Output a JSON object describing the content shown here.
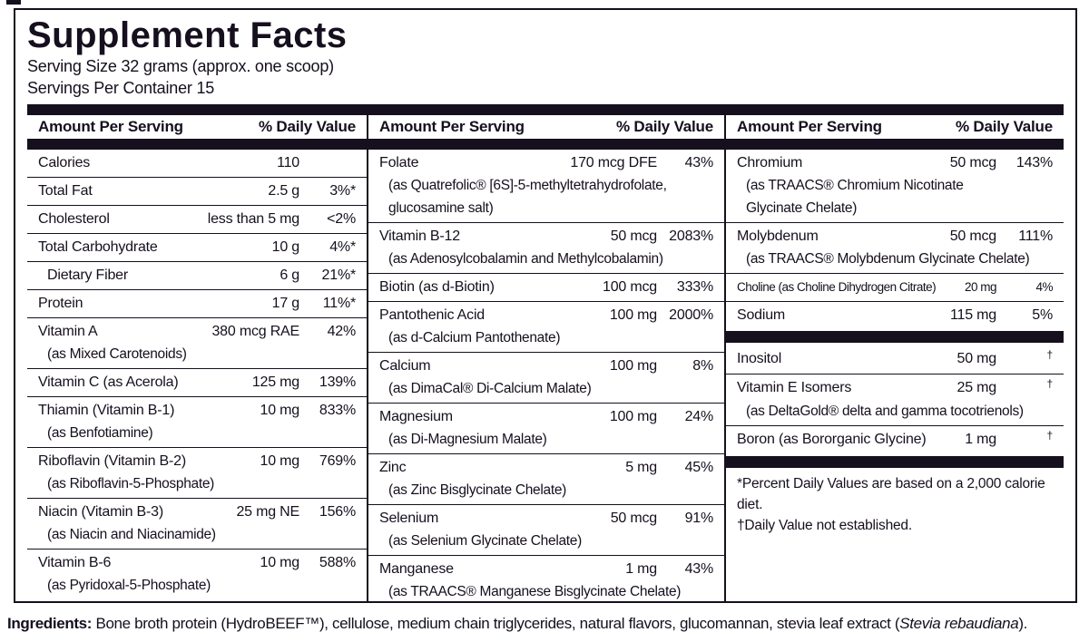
{
  "colors": {
    "ink": "#160f1e"
  },
  "title": "Supplement Facts",
  "serving": {
    "size_line": "Serving Size 32 grams (approx. one scoop)",
    "servings_line": "Servings Per Container 15"
  },
  "header": {
    "amount_label": "Amount Per Serving",
    "dv_label": "% Daily Value"
  },
  "columns": [
    {
      "rows": [
        {
          "name": "Calories",
          "amount": "110",
          "dv": ""
        },
        {
          "name": "Total Fat",
          "amount": "2.5 g",
          "dv": "3%*"
        },
        {
          "name": "Cholesterol",
          "amount": "less than 5 mg",
          "dv": "<2%"
        },
        {
          "name": "Total Carbohydrate",
          "amount": "10 g",
          "dv": "4%*"
        },
        {
          "name": "Dietary Fiber",
          "amount": "6 g",
          "dv": "21%*",
          "indent": true
        },
        {
          "name": "Protein",
          "amount": "17 g",
          "dv": "11%*"
        },
        {
          "name": "Vitamin A",
          "amount": "380 mcg RAE",
          "dv": "42%",
          "sub": [
            "(as Mixed Carotenoids)"
          ]
        },
        {
          "name": "Vitamin C (as Acerola)",
          "amount": "125 mg",
          "dv": "139%"
        },
        {
          "name": "Thiamin (Vitamin B-1)",
          "amount": "10 mg",
          "dv": "833%",
          "sub": [
            "(as Benfotiamine)"
          ]
        },
        {
          "name": "Riboflavin (Vitamin B-2)",
          "amount": "10 mg",
          "dv": "769%",
          "sub": [
            "(as Riboflavin-5-Phosphate)"
          ]
        },
        {
          "name": "Niacin (Vitamin B-3)",
          "amount": "25 mg NE",
          "dv": "156%",
          "sub": [
            "(as Niacin and Niacinamide)"
          ]
        },
        {
          "name": "Vitamin B-6",
          "amount": "10 mg",
          "dv": "588%",
          "sub": [
            "(as Pyridoxal-5-Phosphate)"
          ],
          "last": true
        }
      ]
    },
    {
      "rows": [
        {
          "name": "Folate",
          "amount": "170 mcg DFE",
          "dv": "43%",
          "sub": [
            "(as Quatrefolic® [6S]-5-methyltetrahydrofolate,",
            "glucosamine salt)"
          ]
        },
        {
          "name": "Vitamin B-12",
          "amount": "50 mcg",
          "dv": "2083%",
          "sub": [
            "(as Adenosylcobalamin and Methylcobalamin)"
          ]
        },
        {
          "name": "Biotin (as d-Biotin)",
          "amount": "100 mcg",
          "dv": "333%"
        },
        {
          "name": "Pantothenic Acid",
          "amount": "100 mg",
          "dv": "2000%",
          "sub": [
            "(as d-Calcium Pantothenate)"
          ]
        },
        {
          "name": "Calcium",
          "amount": "100 mg",
          "dv": "8%",
          "sub": [
            "(as DimaCal® Di-Calcium Malate)"
          ]
        },
        {
          "name": "Magnesium",
          "amount": "100 mg",
          "dv": "24%",
          "sub": [
            "(as Di-Magnesium Malate)"
          ]
        },
        {
          "name": "Zinc",
          "amount": "5 mg",
          "dv": "45%",
          "sub": [
            "(as Zinc Bisglycinate Chelate)"
          ]
        },
        {
          "name": "Selenium",
          "amount": "50 mcg",
          "dv": "91%",
          "sub": [
            "(as Selenium Glycinate Chelate)"
          ]
        },
        {
          "name": "Manganese",
          "amount": "1 mg",
          "dv": "43%",
          "sub": [
            "(as TRAACS® Manganese Bisglycinate Chelate)"
          ],
          "last": true
        }
      ]
    },
    {
      "rows": [
        {
          "name": "Chromium",
          "amount": "50 mcg",
          "dv": "143%",
          "sub": [
            "(as TRAACS® Chromium Nicotinate",
            "Glycinate Chelate)"
          ]
        },
        {
          "name": "Molybdenum",
          "amount": "50 mcg",
          "dv": "111%",
          "sub": [
            "(as TRAACS® Molybdenum Glycinate Chelate)"
          ]
        },
        {
          "name": "Choline (as Choline Dihydrogen Citrate)",
          "amount": "20 mg",
          "dv": "4%",
          "condensed": true
        },
        {
          "name": "Sodium",
          "amount": "115 mg",
          "dv": "5%",
          "bar_after": true
        },
        {
          "name": "Inositol",
          "amount": "50 mg",
          "dv": "†"
        },
        {
          "name": "Vitamin E Isomers",
          "amount": "25 mg",
          "dv": "†",
          "sub": [
            "(as DeltaGold® delta and gamma tocotrienols)"
          ]
        },
        {
          "name": "Boron (as Bororganic Glycine)",
          "amount": "1 mg",
          "dv": "†",
          "bar_after": true,
          "last": true
        }
      ]
    }
  ],
  "footnotes": [
    "*Percent Daily Values are based on a 2,000 calorie diet.",
    "†Daily Value not established."
  ],
  "ingredients": {
    "label": "Ingredients:",
    "text_before_italic": " Bone broth protein (HydroBEEF™), cellulose, medium chain triglycerides, natural flavors, glucomannan, stevia leaf extract (",
    "italic": "Stevia rebaudiana",
    "suffix": ")."
  }
}
